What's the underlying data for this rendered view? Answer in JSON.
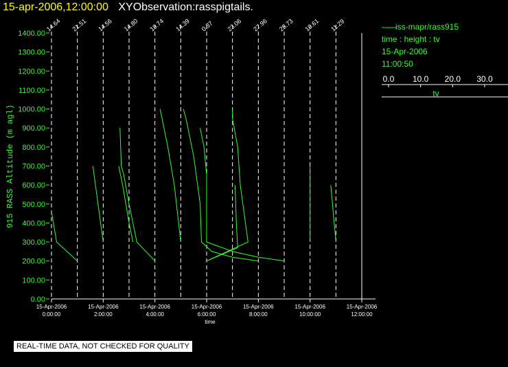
{
  "title": {
    "date": "15-apr-2006,12:00:00",
    "main": "XYObservation:rasspigtails."
  },
  "legend": {
    "series": "iss-mapr/rass915",
    "kind": "time : height : tv",
    "date": "15-Apr-2006",
    "time": "11:00:50"
  },
  "colorbar": {
    "ticks": [
      "0.0",
      "10.0",
      "20.0",
      "30.0"
    ],
    "tick_values": [
      0,
      10,
      20,
      30
    ],
    "label": "tv"
  },
  "footer_note": "REAL-TIME DATA, NOT CHECKED FOR QUALITY",
  "colors": {
    "background": "#000000",
    "axis": "#ffffff",
    "data": "#33ff33",
    "title_date": "#ffff00"
  },
  "chart_data": {
    "type": "line",
    "xlabel": "time",
    "ylabel": "915 RASS Altitude (m agl)",
    "xlim": [
      0,
      12
    ],
    "ylim": [
      0,
      1400
    ],
    "y_ticks": [
      {
        "value": 0,
        "label": "0.00"
      },
      {
        "value": 100,
        "label": "100.00"
      },
      {
        "value": 200,
        "label": "200.00"
      },
      {
        "value": 300,
        "label": "300.00"
      },
      {
        "value": 400,
        "label": "400.00"
      },
      {
        "value": 500,
        "label": "500.00"
      },
      {
        "value": 600,
        "label": "600.00"
      },
      {
        "value": 700,
        "label": "700.00"
      },
      {
        "value": 800,
        "label": "800.00"
      },
      {
        "value": 900,
        "label": "900.00"
      },
      {
        "value": 1000,
        "label": "1000.00"
      },
      {
        "value": 1100,
        "label": "1100.00"
      },
      {
        "value": 1200,
        "label": "1200.00"
      },
      {
        "value": 1300,
        "label": "1300.00"
      },
      {
        "value": 1400,
        "label": "1400.00"
      }
    ],
    "x_ticks": [
      {
        "value": 0,
        "date": "15-Apr-2006",
        "time": "0:00:00"
      },
      {
        "value": 2,
        "date": "15-Apr-2006",
        "time": "2:00:00"
      },
      {
        "value": 4,
        "date": "15-Apr-2006",
        "time": "4:00:00"
      },
      {
        "value": 6,
        "date": "15-Apr-2006",
        "time": "6:00:00"
      },
      {
        "value": 8,
        "date": "15-Apr-2006",
        "time": "8:00:00"
      },
      {
        "value": 10,
        "date": "15-Apr-2006",
        "time": "10:00:00"
      },
      {
        "value": 12,
        "date": "15-Apr-2006",
        "time": "12:00:00"
      }
    ],
    "profile_markers": [
      {
        "x": 0.0,
        "label": "14.64"
      },
      {
        "x": 1.0,
        "label": "21.51"
      },
      {
        "x": 2.0,
        "label": "14.56"
      },
      {
        "x": 3.0,
        "label": "14.80"
      },
      {
        "x": 4.0,
        "label": "19.74"
      },
      {
        "x": 5.0,
        "label": "14.39"
      },
      {
        "x": 6.0,
        "label": "0.37"
      },
      {
        "x": 7.0,
        "label": "23.06"
      },
      {
        "x": 8.0,
        "label": "27.96"
      },
      {
        "x": 9.0,
        "label": "25.73"
      },
      {
        "x": 10.0,
        "label": "10.61"
      },
      {
        "x": 11.0,
        "label": "11.29"
      }
    ],
    "grid": false,
    "series": [
      {
        "points": [
          [
            0.0,
            460
          ],
          [
            0.2,
            300
          ],
          [
            1.0,
            200
          ]
        ]
      },
      {
        "points": [
          [
            1.6,
            700
          ],
          [
            1.7,
            600
          ],
          [
            2.0,
            300
          ]
        ]
      },
      {
        "points": [
          [
            2.65,
            900
          ],
          [
            2.7,
            700
          ],
          [
            2.8,
            650
          ],
          [
            3.0,
            500
          ],
          [
            3.3,
            300
          ],
          [
            4.0,
            200
          ]
        ]
      },
      {
        "points": [
          [
            2.6,
            700
          ],
          [
            2.75,
            600
          ],
          [
            3.0,
            400
          ],
          [
            3.15,
            300
          ]
        ]
      },
      {
        "points": [
          [
            4.2,
            1000
          ],
          [
            4.5,
            800
          ],
          [
            4.75,
            600
          ],
          [
            5.0,
            300
          ]
        ]
      },
      {
        "points": [
          [
            5.1,
            1000
          ],
          [
            5.2,
            950
          ],
          [
            5.5,
            750
          ],
          [
            5.75,
            500
          ],
          [
            5.8,
            300
          ],
          [
            6.2,
            250
          ],
          [
            7.0,
            220
          ],
          [
            8.0,
            200
          ]
        ]
      },
      {
        "points": [
          [
            5.75,
            900
          ],
          [
            5.9,
            800
          ],
          [
            6.0,
            650
          ],
          [
            6.0,
            300
          ],
          [
            7.0,
            250
          ],
          [
            8.0,
            220
          ],
          [
            9.0,
            200
          ]
        ]
      },
      {
        "points": [
          [
            6.0,
            200
          ],
          [
            7.6,
            300
          ],
          [
            7.3,
            600
          ],
          [
            7.2,
            800
          ],
          [
            7.0,
            950
          ],
          [
            7.0,
            1000
          ]
        ]
      },
      {
        "points": [
          [
            7.1,
            600
          ],
          [
            7.15,
            400
          ],
          [
            7.2,
            270
          ],
          [
            6.0,
            200
          ]
        ]
      },
      {
        "points": [
          [
            10.0,
            700
          ],
          [
            10.0,
            300
          ]
        ]
      },
      {
        "points": [
          [
            10.8,
            600
          ],
          [
            11.0,
            300
          ]
        ]
      }
    ]
  }
}
